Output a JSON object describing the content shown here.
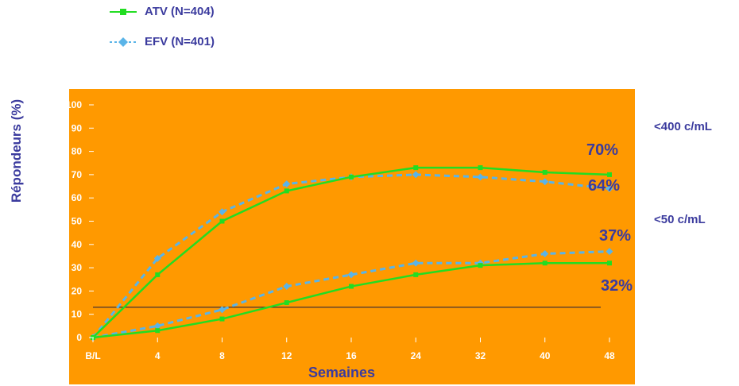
{
  "chart_data": {
    "type": "line",
    "categories": [
      "B/L",
      "4",
      "8",
      "12",
      "16",
      "24",
      "32",
      "40",
      "48"
    ],
    "xlabel": "Semaines",
    "ylabel": "Répondeurs (%)",
    "ylim": [
      0,
      100
    ],
    "yticks": [
      0,
      10,
      20,
      30,
      40,
      50,
      60,
      70,
      80,
      90,
      100
    ],
    "legend_position": "top-left",
    "reference_line_y": 13,
    "colors": {
      "background": "#ff9900",
      "atv": "#22dd22",
      "efv": "#5ab4e8",
      "text": "#3b3b9e",
      "ticks": "#ffffff"
    },
    "series": [
      {
        "name": "ATV (N=404)",
        "group": "<400 c/mL",
        "values": [
          0,
          27,
          50,
          63,
          69,
          73,
          73,
          71,
          70
        ]
      },
      {
        "name": "EFV (N=401)",
        "group": "<400 c/mL",
        "values": [
          0,
          34,
          54,
          66,
          69,
          70,
          69,
          67,
          64
        ]
      },
      {
        "name": "ATV (N=404)",
        "group": "<50 c/mL",
        "values": [
          0,
          3,
          8,
          15,
          22,
          27,
          31,
          32,
          32
        ]
      },
      {
        "name": "EFV (N=401)",
        "group": "<50 c/mL",
        "values": [
          0,
          5,
          12,
          22,
          27,
          32,
          32,
          36,
          37
        ]
      }
    ],
    "legend": [
      {
        "label": "ATV (N=404)",
        "marker": "square-icon",
        "color": "#22dd22"
      },
      {
        "label": "EFV (N=401)",
        "marker": "diamond-icon",
        "color": "#5ab4e8"
      }
    ],
    "annotations": {
      "group_400": "<400 c/mL",
      "group_50": "<50 c/mL",
      "val_70": "70%",
      "val_64": "64%",
      "val_37": "37%",
      "val_32": "32%"
    }
  }
}
